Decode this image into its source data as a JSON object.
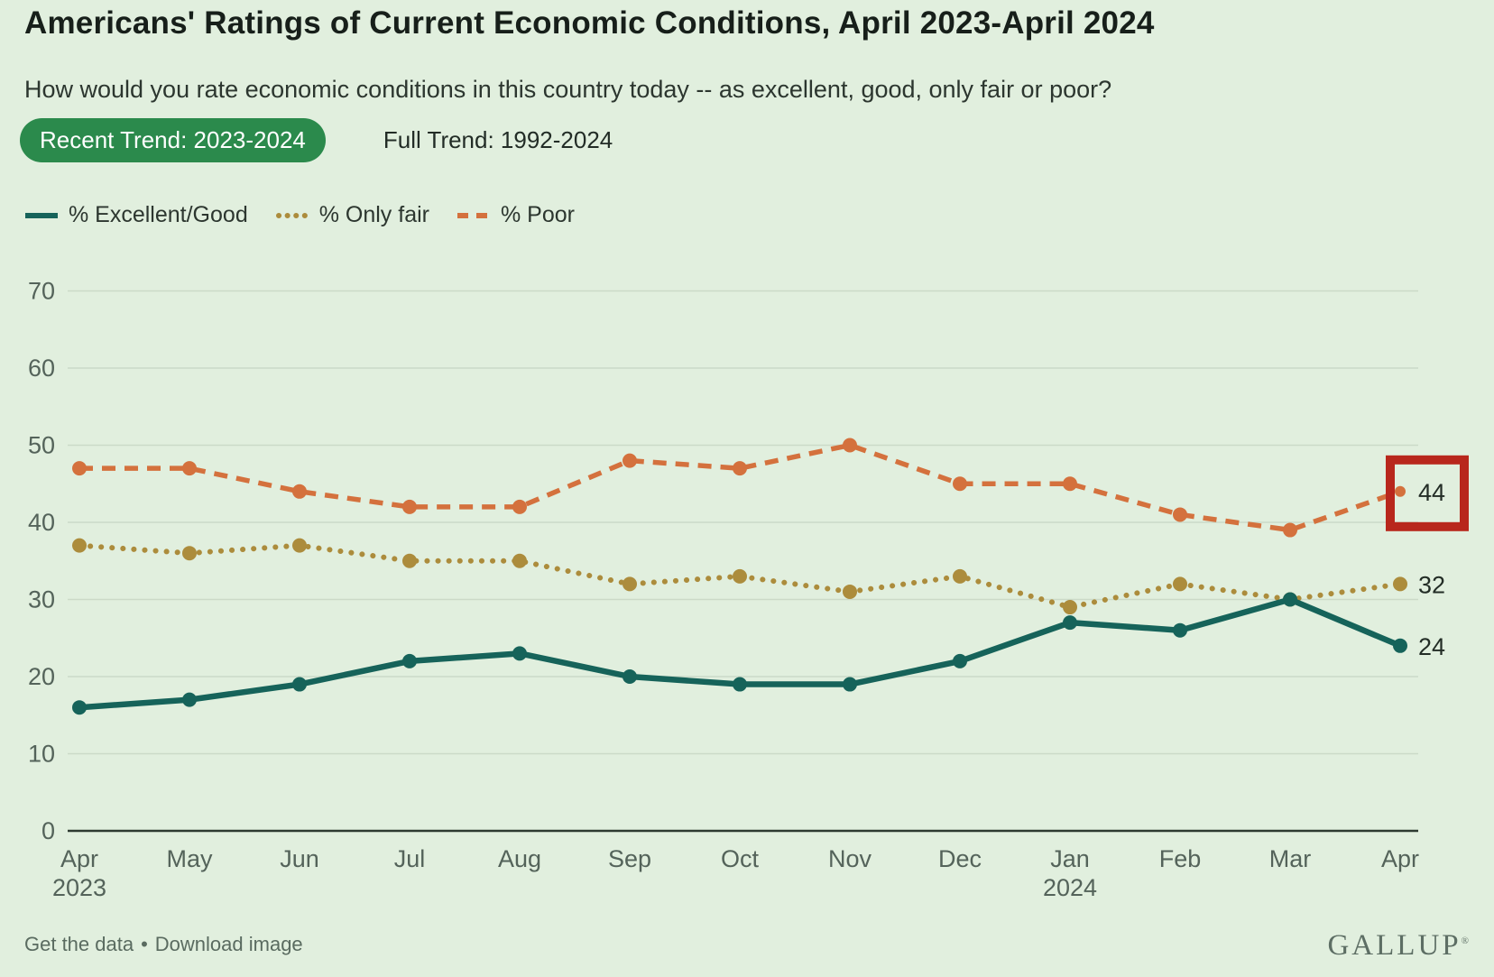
{
  "page": {
    "background": "#e1efde"
  },
  "header": {
    "title": "Americans' Ratings of Current Economic Conditions, April 2023-April 2024",
    "subtitle": "How would you rate economic conditions in this country today -- as excellent, good, only fair or poor?",
    "tabs": [
      {
        "label": "Recent Trend: 2023-2024",
        "active": true
      },
      {
        "label": "Full Trend: 1992-2024",
        "active": false
      }
    ]
  },
  "chart_data": {
    "type": "line",
    "title": "Americans' Ratings of Current Economic Conditions, April 2023-April 2024",
    "categories": [
      {
        "label": "Apr",
        "sub": "2023"
      },
      {
        "label": "May"
      },
      {
        "label": "Jun"
      },
      {
        "label": "Jul"
      },
      {
        "label": "Aug"
      },
      {
        "label": "Sep"
      },
      {
        "label": "Oct"
      },
      {
        "label": "Nov"
      },
      {
        "label": "Dec"
      },
      {
        "label": "Jan",
        "sub": "2024"
      },
      {
        "label": "Feb"
      },
      {
        "label": "Mar"
      },
      {
        "label": "Apr"
      }
    ],
    "series": [
      {
        "name": "% Excellent/Good",
        "color": "#16635a",
        "dash": "solid",
        "values": [
          16,
          17,
          19,
          22,
          23,
          20,
          19,
          19,
          22,
          27,
          26,
          30,
          24
        ],
        "end_label": "24"
      },
      {
        "name": "% Only fair",
        "color": "#ac8c3c",
        "dash": "dotted",
        "values": [
          37,
          36,
          37,
          35,
          35,
          32,
          33,
          31,
          33,
          29,
          32,
          30,
          32
        ],
        "end_label": "32"
      },
      {
        "name": "% Poor",
        "color": "#d4713d",
        "dash": "dashed",
        "values": [
          47,
          47,
          44,
          42,
          42,
          48,
          47,
          50,
          45,
          45,
          41,
          39,
          44
        ],
        "end_label": "44"
      }
    ],
    "ylim": [
      0,
      70
    ],
    "yticks": [
      0,
      10,
      20,
      30,
      40,
      50,
      60,
      70
    ],
    "grid": true,
    "legend_position": "top",
    "annotation": {
      "type": "highlight-box",
      "series": "% Poor",
      "point_index": 12,
      "color": "#b8271c"
    },
    "colors": {
      "grid": "#cbdac8",
      "axis": "#2d3a31",
      "tick_text": "#54635a",
      "end_label_text": "#232d26"
    }
  },
  "footer": {
    "link1": "Get the data",
    "separator": "•",
    "link2": "Download image",
    "logo": "GALLUP",
    "logo_mark": "®"
  }
}
